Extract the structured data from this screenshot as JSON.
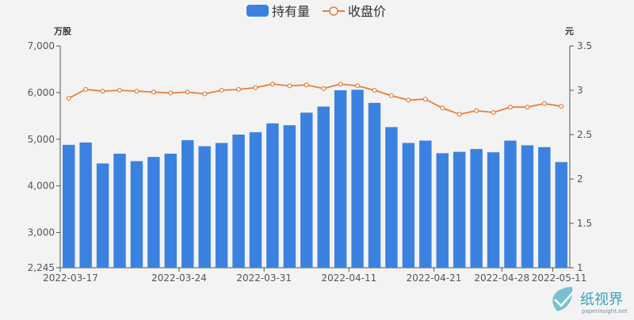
{
  "legend": {
    "holding_label": "持有量",
    "price_label": "收盘价"
  },
  "colors": {
    "bar": "#3b82e0",
    "line": "#e4803a",
    "axis": "#555555",
    "watermark": "#3aa3b8"
  },
  "watermark": {
    "logo_text": "纸视界",
    "url_text": "paperinsight.net"
  },
  "chart_data": {
    "type": "bar",
    "x_tick_labels": [
      "2022-03-17",
      "2022-03-24",
      "2022-03-31",
      "2022-04-11",
      "2022-04-21",
      "2022-04-28",
      "2022-05-11"
    ],
    "left_axis": {
      "unit": "万股",
      "ylim": [
        2245,
        7000
      ],
      "ticks": [
        2245,
        3000,
        4000,
        5000,
        6000,
        7000
      ]
    },
    "right_axis": {
      "unit": "元",
      "ylim": [
        1,
        3.5
      ],
      "ticks": [
        1,
        1.5,
        2,
        2.5,
        3,
        3.5
      ]
    },
    "grid": false,
    "legend_position": "top-center",
    "series": [
      {
        "name": "持有量",
        "type": "bar",
        "axis": "left",
        "values": [
          4880,
          4930,
          4480,
          4690,
          4530,
          4620,
          4690,
          4980,
          4850,
          4920,
          5100,
          5150,
          5340,
          5300,
          5570,
          5700,
          6050,
          6060,
          5780,
          5260,
          4920,
          4970,
          4700,
          4730,
          4790,
          4720,
          4970,
          4870,
          4830,
          4510
        ]
      },
      {
        "name": "收盘价",
        "type": "line",
        "axis": "right",
        "values": [
          2.91,
          3.01,
          2.99,
          3.0,
          2.99,
          2.98,
          2.97,
          2.98,
          2.96,
          3.0,
          3.01,
          3.03,
          3.07,
          3.05,
          3.06,
          3.02,
          3.07,
          3.05,
          3.0,
          2.94,
          2.89,
          2.9,
          2.8,
          2.73,
          2.77,
          2.75,
          2.81,
          2.81,
          2.85,
          2.82
        ]
      }
    ]
  }
}
